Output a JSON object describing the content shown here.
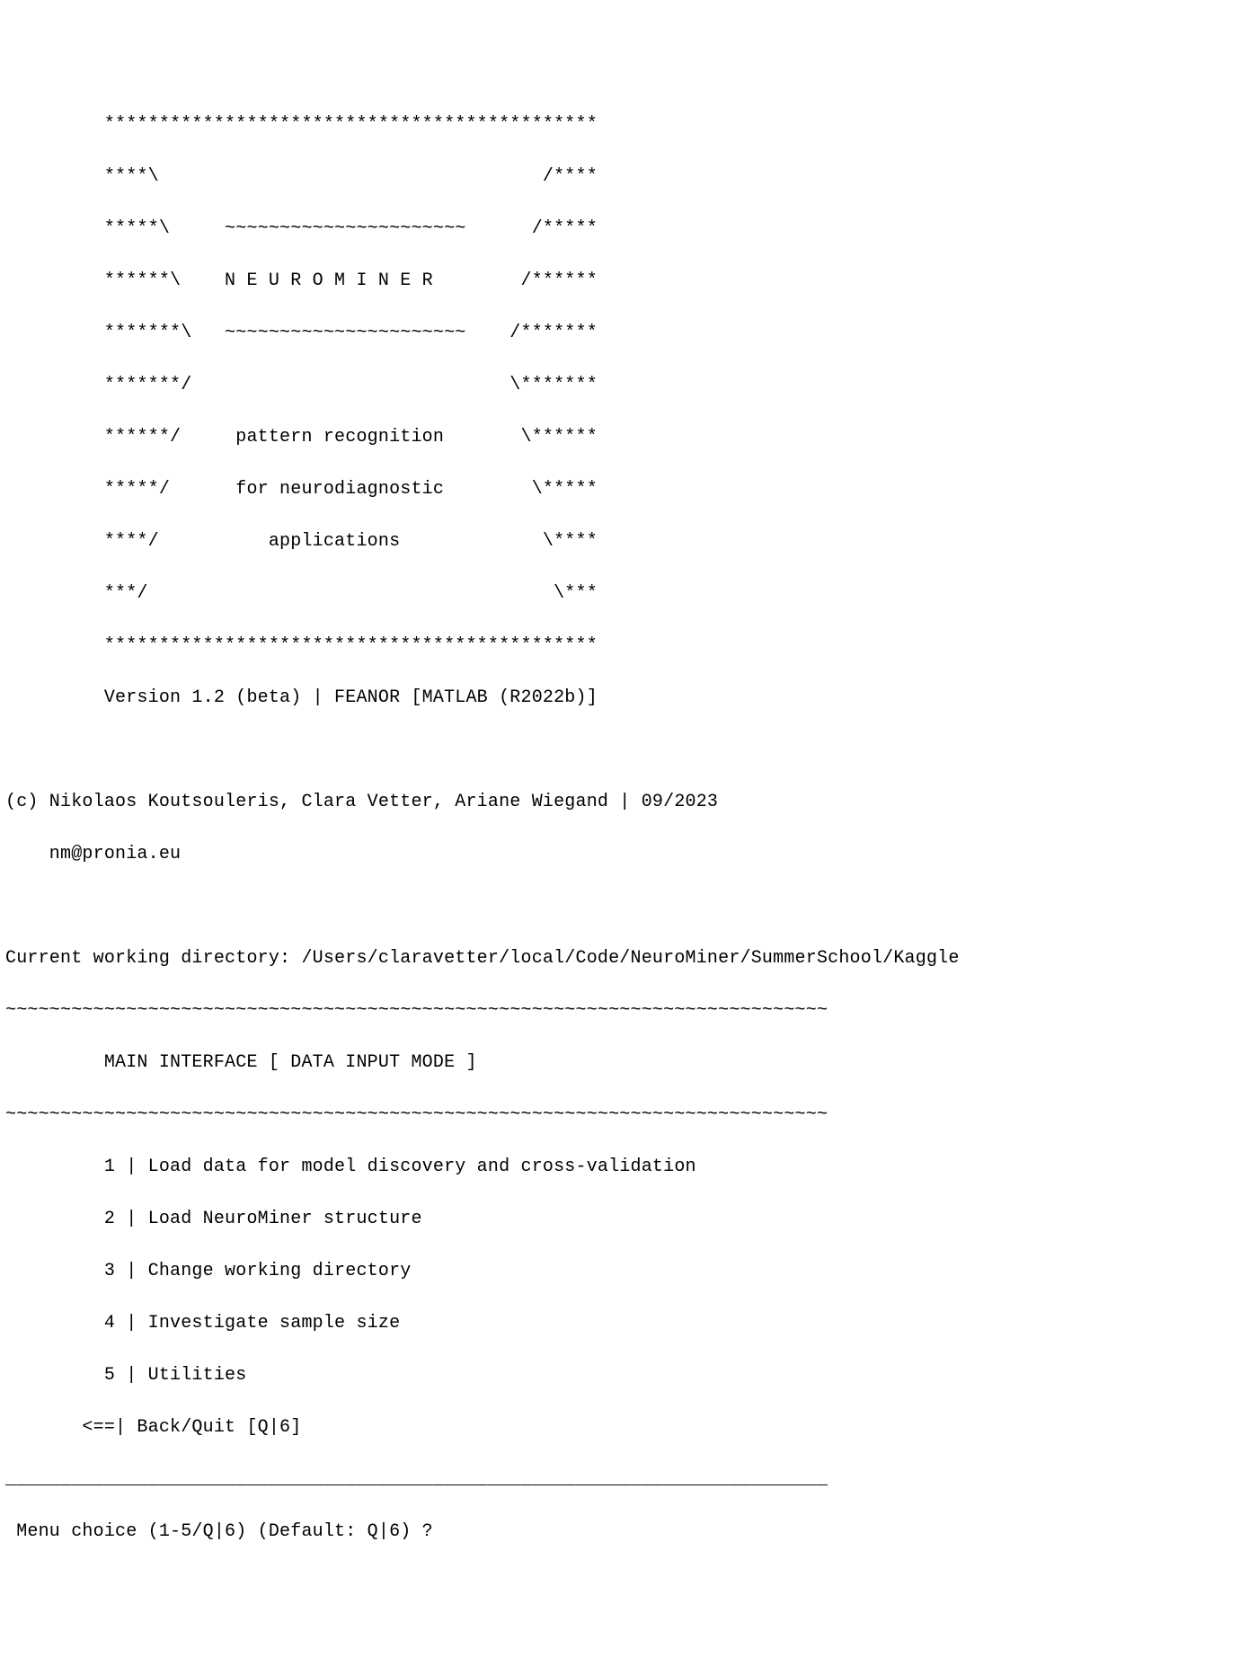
{
  "banner": {
    "lines": [
      "         *********************************************",
      "         ****\\                                   /****",
      "         *****\\     ~~~~~~~~~~~~~~~~~~~~~~      /*****",
      "         ******\\    N E U R O M I N E R        /******",
      "         *******\\   ~~~~~~~~~~~~~~~~~~~~~~    /*******",
      "         *******/                             \\*******",
      "         ******/     pattern recognition       \\******",
      "         *****/      for neurodiagnostic        \\*****",
      "         ****/          applications             \\****",
      "         ***/                                     \\***",
      "         *********************************************"
    ],
    "version_line": "         Version 1.2 (beta) | FEANOR [MATLAB (R2022b)]"
  },
  "credits": {
    "line1": "(c) Nikolaos Koutsouleris, Clara Vetter, Ariane Wiegand | 09/2023",
    "line2": "    nm@pronia.eu"
  },
  "cwd_line": "Current working directory: /Users/claravetter/local/Code/NeuroMiner/SummerSchool/Kaggle",
  "divider_wave_top": "~~~~~~~~~~~~~~~~~~~~~~~~~~~~~~~~~~~~~~~~~~~~~~~~~~~~~~~~~~~~~~~~~~~~~~~~~~~",
  "interface_title": "         MAIN INTERFACE [ DATA INPUT MODE ]",
  "divider_wave_bottom": "~~~~~~~~~~~~~~~~~~~~~~~~~~~~~~~~~~~~~~~~~~~~~~~~~~~~~~~~~~~~~~~~~~~~~~~~~~~",
  "menu": {
    "items": [
      "         1 | Load data for model discovery and cross-validation",
      "         2 | Load NeuroMiner structure",
      "         3 | Change working directory",
      "         4 | Investigate sample size",
      "         5 | Utilities"
    ],
    "back_line": "       <==| Back/Quit [Q|6]"
  },
  "divider_underscore": "___________________________________________________________________________",
  "prompt": " Menu choice (1-5/Q|6) (Default: Q|6) ?"
}
